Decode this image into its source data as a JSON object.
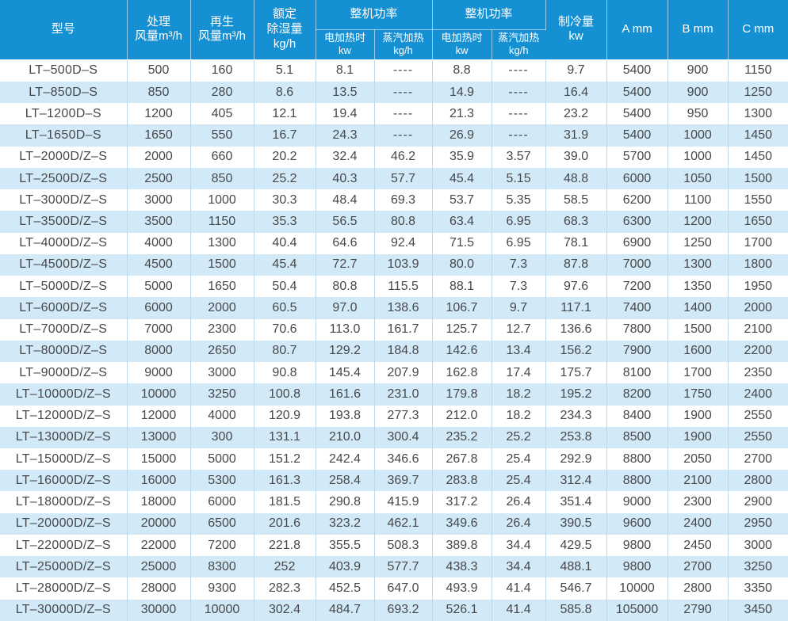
{
  "table": {
    "header": {
      "model": "型号",
      "process_air": [
        "处理",
        "风量m³/h"
      ],
      "regen_air": [
        "再生",
        "风量m³/h"
      ],
      "rated_dehum": [
        "额定",
        "除湿量",
        "kg/h"
      ],
      "power_groups": [
        "整机功率",
        "整机功率"
      ],
      "sub_columns": [
        [
          "电加热时",
          "kw"
        ],
        [
          "蒸汽加热",
          "kg/h"
        ],
        [
          "电加热时",
          "kw"
        ],
        [
          "蒸汽加热",
          "kg/h"
        ]
      ],
      "cooling": [
        "制冷量",
        "kw"
      ],
      "dim_a": "A mm",
      "dim_b": "B mm",
      "dim_c": "C mm"
    },
    "empty_value": "----",
    "rows": [
      [
        "LT–500D–S",
        "500",
        "160",
        "5.1",
        "8.1",
        "----",
        "8.8",
        "----",
        "9.7",
        "5400",
        "900",
        "1150"
      ],
      [
        "LT–850D–S",
        "850",
        "280",
        "8.6",
        "13.5",
        "----",
        "14.9",
        "----",
        "16.4",
        "5400",
        "900",
        "1250"
      ],
      [
        "LT–1200D–S",
        "1200",
        "405",
        "12.1",
        "19.4",
        "----",
        "21.3",
        "----",
        "23.2",
        "5400",
        "950",
        "1300"
      ],
      [
        "LT–1650D–S",
        "1650",
        "550",
        "16.7",
        "24.3",
        "----",
        "26.9",
        "----",
        "31.9",
        "5400",
        "1000",
        "1450"
      ],
      [
        "LT–2000D/Z–S",
        "2000",
        "660",
        "20.2",
        "32.4",
        "46.2",
        "35.9",
        "3.57",
        "39.0",
        "5700",
        "1000",
        "1450"
      ],
      [
        "LT–2500D/Z–S",
        "2500",
        "850",
        "25.2",
        "40.3",
        "57.7",
        "45.4",
        "5.15",
        "48.8",
        "6000",
        "1050",
        "1500"
      ],
      [
        "LT–3000D/Z–S",
        "3000",
        "1000",
        "30.3",
        "48.4",
        "69.3",
        "53.7",
        "5.35",
        "58.5",
        "6200",
        "1100",
        "1550"
      ],
      [
        "LT–3500D/Z–S",
        "3500",
        "1150",
        "35.3",
        "56.5",
        "80.8",
        "63.4",
        "6.95",
        "68.3",
        "6300",
        "1200",
        "1650"
      ],
      [
        "LT–4000D/Z–S",
        "4000",
        "1300",
        "40.4",
        "64.6",
        "92.4",
        "71.5",
        "6.95",
        "78.1",
        "6900",
        "1250",
        "1700"
      ],
      [
        "LT–4500D/Z–S",
        "4500",
        "1500",
        "45.4",
        "72.7",
        "103.9",
        "80.0",
        "7.3",
        "87.8",
        "7000",
        "1300",
        "1800"
      ],
      [
        "LT–5000D/Z–S",
        "5000",
        "1650",
        "50.4",
        "80.8",
        "115.5",
        "88.1",
        "7.3",
        "97.6",
        "7200",
        "1350",
        "1950"
      ],
      [
        "LT–6000D/Z–S",
        "6000",
        "2000",
        "60.5",
        "97.0",
        "138.6",
        "106.7",
        "9.7",
        "117.1",
        "7400",
        "1400",
        "2000"
      ],
      [
        "LT–7000D/Z–S",
        "7000",
        "2300",
        "70.6",
        "113.0",
        "161.7",
        "125.7",
        "12.7",
        "136.6",
        "7800",
        "1500",
        "2100"
      ],
      [
        "LT–8000D/Z–S",
        "8000",
        "2650",
        "80.7",
        "129.2",
        "184.8",
        "142.6",
        "13.4",
        "156.2",
        "7900",
        "1600",
        "2200"
      ],
      [
        "LT–9000D/Z–S",
        "9000",
        "3000",
        "90.8",
        "145.4",
        "207.9",
        "162.8",
        "17.4",
        "175.7",
        "8100",
        "1700",
        "2350"
      ],
      [
        "LT–10000D/Z–S",
        "10000",
        "3250",
        "100.8",
        "161.6",
        "231.0",
        "179.8",
        "18.2",
        "195.2",
        "8200",
        "1750",
        "2400"
      ],
      [
        "LT–12000D/Z–S",
        "12000",
        "4000",
        "120.9",
        "193.8",
        "277.3",
        "212.0",
        "18.2",
        "234.3",
        "8400",
        "1900",
        "2550"
      ],
      [
        "LT–13000D/Z–S",
        "13000",
        "300",
        "131.1",
        "210.0",
        "300.4",
        "235.2",
        "25.2",
        "253.8",
        "8500",
        "1900",
        "2550"
      ],
      [
        "LT–15000D/Z–S",
        "15000",
        "5000",
        "151.2",
        "242.4",
        "346.6",
        "267.8",
        "25.4",
        "292.9",
        "8800",
        "2050",
        "2700"
      ],
      [
        "LT–16000D/Z–S",
        "16000",
        "5300",
        "161.3",
        "258.4",
        "369.7",
        "283.8",
        "25.4",
        "312.4",
        "8800",
        "2100",
        "2800"
      ],
      [
        "LT–18000D/Z–S",
        "18000",
        "6000",
        "181.5",
        "290.8",
        "415.9",
        "317.2",
        "26.4",
        "351.4",
        "9000",
        "2300",
        "2900"
      ],
      [
        "LT–20000D/Z–S",
        "20000",
        "6500",
        "201.6",
        "323.2",
        "462.1",
        "349.6",
        "26.4",
        "390.5",
        "9600",
        "2400",
        "2950"
      ],
      [
        "LT–22000D/Z–S",
        "22000",
        "7200",
        "221.8",
        "355.5",
        "508.3",
        "389.8",
        "34.4",
        "429.5",
        "9800",
        "2450",
        "3000"
      ],
      [
        "LT–25000D/Z–S",
        "25000",
        "8300",
        "252",
        "403.9",
        "577.7",
        "438.3",
        "34.4",
        "488.1",
        "9800",
        "2700",
        "3250"
      ],
      [
        "LT–28000D/Z–S",
        "28000",
        "9300",
        "282.3",
        "452.5",
        "647.0",
        "493.9",
        "41.4",
        "546.7",
        "10000",
        "2800",
        "3350"
      ],
      [
        "LT–30000D/Z–S",
        "30000",
        "10000",
        "302.4",
        "484.7",
        "693.2",
        "526.1",
        "41.4",
        "585.8",
        "105000",
        "2790",
        "3450"
      ]
    ]
  },
  "colors": {
    "header_bg": "#1590d2",
    "stripe_bg": "#d2e9f7",
    "body_text": "#47484a",
    "grid_line": "#bdd7e8"
  }
}
